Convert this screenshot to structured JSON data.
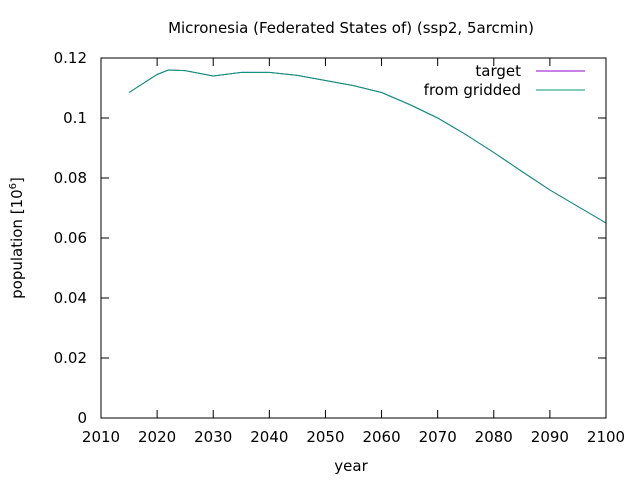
{
  "chart_data": {
    "type": "line",
    "title": "Micronesia (Federated States of) (ssp2, 5arcmin)",
    "xlabel": "year",
    "ylabel_main": "population [10",
    "ylabel_exp": "6",
    "ylabel_close": "]",
    "xlim": [
      2010,
      2100
    ],
    "ylim": [
      0,
      0.12
    ],
    "grid": false,
    "legend_position": "top-right",
    "x_ticks": [
      2010,
      2020,
      2030,
      2040,
      2050,
      2060,
      2070,
      2080,
      2090,
      2100
    ],
    "x_tick_labels": [
      "2010",
      "2020",
      "2030",
      "2040",
      "2050",
      "2060",
      "2070",
      "2080",
      "2090",
      "2100"
    ],
    "y_ticks": [
      0,
      0.02,
      0.04,
      0.06,
      0.08,
      0.1,
      0.12
    ],
    "y_tick_labels": [
      "0",
      "0.02",
      "0.04",
      "0.06",
      "0.08",
      "0.1",
      "0.12"
    ],
    "series": [
      {
        "name": "target",
        "color": "#9400d3",
        "x": [
          2015,
          2020,
          2022,
          2025,
          2030,
          2035,
          2040,
          2045,
          2050,
          2055,
          2060,
          2065,
          2070,
          2075,
          2080,
          2085,
          2090,
          2095,
          2100
        ],
        "y": [
          0.1085,
          0.1145,
          0.116,
          0.1158,
          0.114,
          0.1152,
          0.1152,
          0.1142,
          0.1125,
          0.1108,
          0.1085,
          0.1045,
          0.1,
          0.0945,
          0.0885,
          0.0822,
          0.076,
          0.0705,
          0.065
        ]
      },
      {
        "name": "from gridded",
        "color": "#009e73",
        "x": [
          2015,
          2020,
          2022,
          2025,
          2030,
          2035,
          2040,
          2045,
          2050,
          2055,
          2060,
          2065,
          2070,
          2075,
          2080,
          2085,
          2090,
          2095,
          2100
        ],
        "y": [
          0.1085,
          0.1145,
          0.116,
          0.1158,
          0.114,
          0.1152,
          0.1152,
          0.1142,
          0.1125,
          0.1108,
          0.1085,
          0.1045,
          0.1,
          0.0945,
          0.0885,
          0.0822,
          0.076,
          0.0705,
          0.065
        ]
      }
    ]
  }
}
